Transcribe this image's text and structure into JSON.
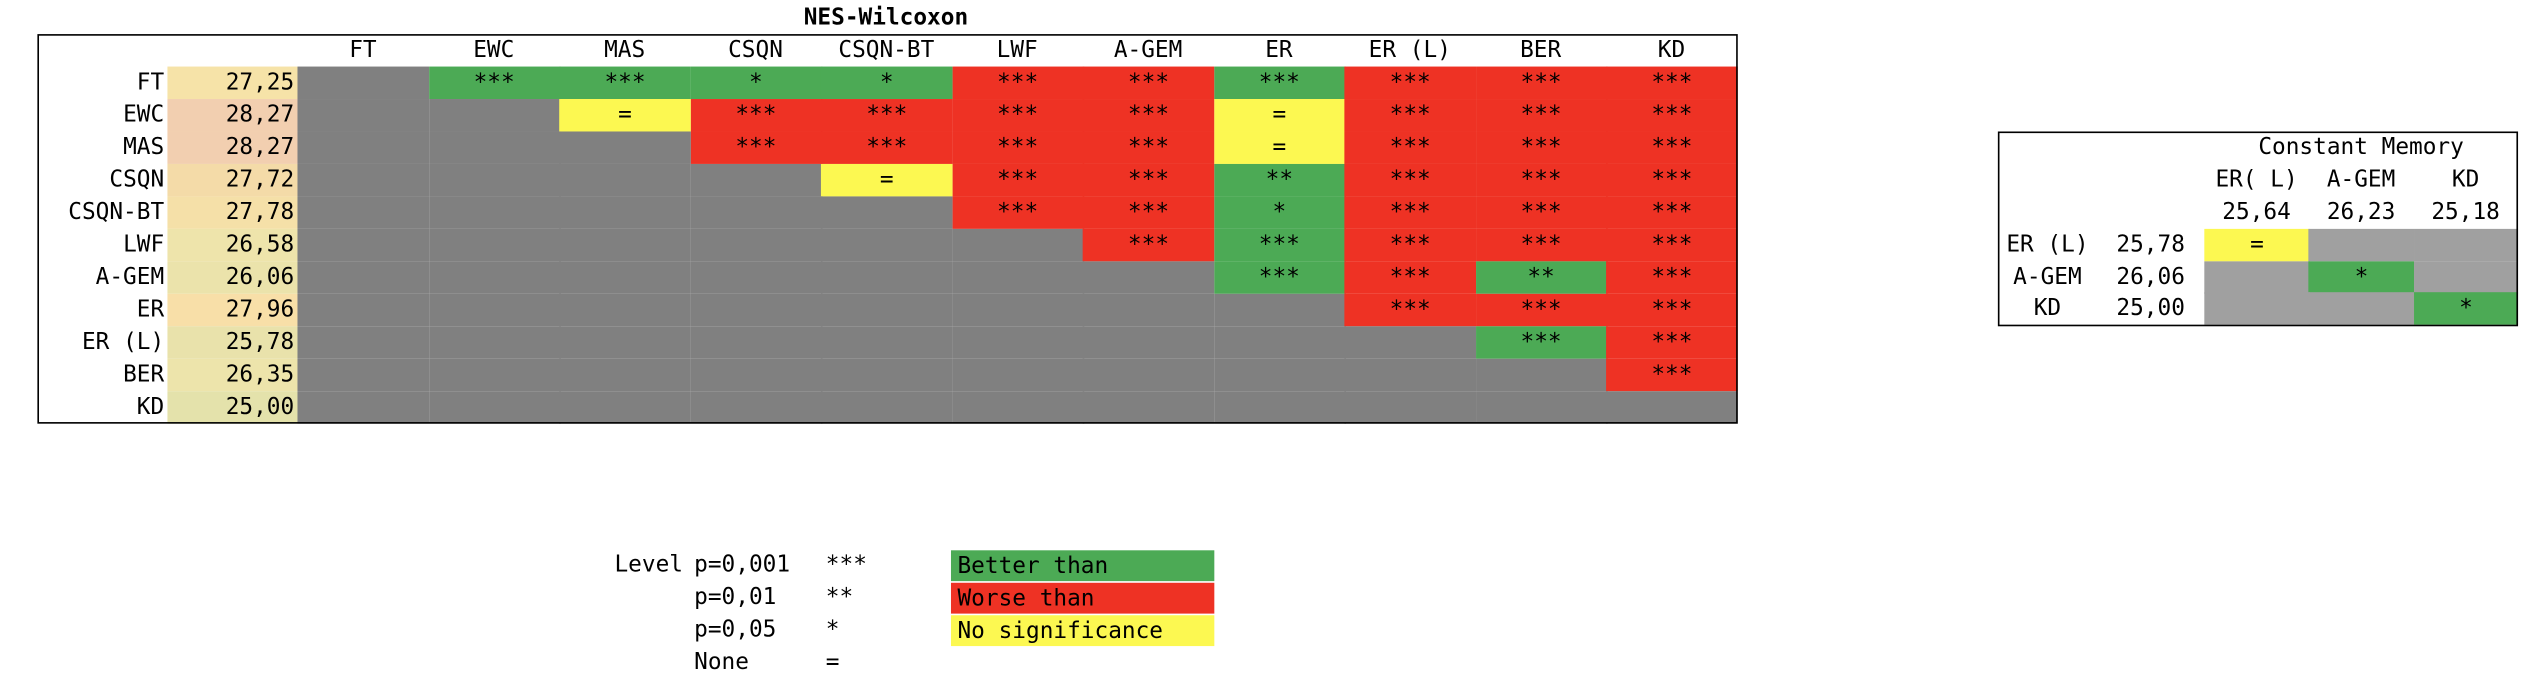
{
  "chart_data": [
    {
      "type": "table",
      "title": "NES-Wilcoxon",
      "columns": [
        "FT",
        "EWC",
        "MAS",
        "CSQN",
        "CSQN-BT",
        "LWF",
        "A-GEM",
        "ER",
        "ER (L)",
        "BER",
        "KD"
      ],
      "rows": [
        {
          "label": "FT",
          "value": "27,25",
          "value_color": "#f6e3a8",
          "cells": [
            "",
            "***",
            "***",
            "*",
            "*",
            "***",
            "***",
            "***",
            "***",
            "***",
            "***"
          ]
        },
        {
          "label": "EWC",
          "value": "28,27",
          "value_color": "#f2cfb0",
          "cells": [
            "",
            "",
            "=",
            "***",
            "***",
            "***",
            "***",
            "=",
            "***",
            "***",
            "***"
          ]
        },
        {
          "label": "MAS",
          "value": "28,27",
          "value_color": "#f2cfb0",
          "cells": [
            "",
            "",
            "",
            "***",
            "***",
            "***",
            "***",
            "=",
            "***",
            "***",
            "***"
          ]
        },
        {
          "label": "CSQN",
          "value": "27,72",
          "value_color": "#f4dba8",
          "cells": [
            "",
            "",
            "",
            "",
            "=",
            "***",
            "***",
            "**",
            "***",
            "***",
            "***"
          ]
        },
        {
          "label": "CSQN-BT",
          "value": "27,78",
          "value_color": "#f5e0a8",
          "cells": [
            "",
            "",
            "",
            "",
            "",
            "***",
            "***",
            "*",
            "***",
            "***",
            "***"
          ]
        },
        {
          "label": "LWF",
          "value": "26,58",
          "value_color": "#eee4ab",
          "cells": [
            "",
            "",
            "",
            "",
            "",
            "",
            "***",
            "***",
            "***",
            "***",
            "***"
          ]
        },
        {
          "label": "A-GEM",
          "value": "26,06",
          "value_color": "#ebe3ab",
          "cells": [
            "",
            "",
            "",
            "",
            "",
            "",
            "",
            "***",
            "***",
            "**",
            "***"
          ]
        },
        {
          "label": "ER",
          "value": "27,96",
          "value_color": "#f8dfa8",
          "cells": [
            "",
            "",
            "",
            "",
            "",
            "",
            "",
            "",
            "***",
            "***",
            "***"
          ]
        },
        {
          "label": "ER (L)",
          "value": "25,78",
          "value_color": "#e9e2ab",
          "cells": [
            "",
            "",
            "",
            "",
            "",
            "",
            "",
            "",
            "",
            "***",
            "***"
          ]
        },
        {
          "label": "BER",
          "value": "26,35",
          "value_color": "#ede4ab",
          "cells": [
            "",
            "",
            "",
            "",
            "",
            "",
            "",
            "",
            "",
            "",
            "***"
          ]
        },
        {
          "label": "KD",
          "value": "25,00",
          "value_color": "#e4e2ab",
          "cells": [
            "",
            "",
            "",
            "",
            "",
            "",
            "",
            "",
            "",
            "",
            ""
          ]
        }
      ],
      "cell_colors": [
        [
          "gray",
          "green",
          "green",
          "green",
          "green",
          "red",
          "red",
          "green",
          "red",
          "red",
          "red"
        ],
        [
          "gray",
          "gray",
          "yellow",
          "red",
          "red",
          "red",
          "red",
          "yellow",
          "red",
          "red",
          "red"
        ],
        [
          "gray",
          "gray",
          "gray",
          "red",
          "red",
          "red",
          "red",
          "yellow",
          "red",
          "red",
          "red"
        ],
        [
          "gray",
          "gray",
          "gray",
          "gray",
          "yellow",
          "red",
          "red",
          "green",
          "red",
          "red",
          "red"
        ],
        [
          "gray",
          "gray",
          "gray",
          "gray",
          "gray",
          "red",
          "red",
          "green",
          "red",
          "red",
          "red"
        ],
        [
          "gray",
          "gray",
          "gray",
          "gray",
          "gray",
          "gray",
          "red",
          "green",
          "red",
          "red",
          "red"
        ],
        [
          "gray",
          "gray",
          "gray",
          "gray",
          "gray",
          "gray",
          "gray",
          "green",
          "red",
          "green",
          "red"
        ],
        [
          "gray",
          "gray",
          "gray",
          "gray",
          "gray",
          "gray",
          "gray",
          "gray",
          "red",
          "red",
          "red"
        ],
        [
          "gray",
          "gray",
          "gray",
          "gray",
          "gray",
          "gray",
          "gray",
          "gray",
          "gray",
          "green",
          "red"
        ],
        [
          "gray",
          "gray",
          "gray",
          "gray",
          "gray",
          "gray",
          "gray",
          "gray",
          "gray",
          "gray",
          "red"
        ],
        [
          "gray",
          "gray",
          "gray",
          "gray",
          "gray",
          "gray",
          "gray",
          "gray",
          "gray",
          "gray",
          "gray"
        ]
      ]
    },
    {
      "type": "table",
      "title": "Constant Memory",
      "columns": [
        "ER( L)",
        "A-GEM",
        "KD"
      ],
      "column_values": [
        "25,64",
        "26,23",
        "25,18"
      ],
      "rows": [
        {
          "label": "ER (L)",
          "value": "25,78",
          "cells": [
            "=",
            "",
            ""
          ]
        },
        {
          "label": "A-GEM",
          "value": "26,06",
          "cells": [
            "",
            "*",
            ""
          ]
        },
        {
          "label": "KD",
          "value": "25,00",
          "cells": [
            "",
            "",
            "*"
          ]
        }
      ],
      "cell_colors": [
        [
          "yellow",
          "lightgray",
          "lightgray"
        ],
        [
          "lightgray",
          "green",
          "lightgray"
        ],
        [
          "lightgray",
          "lightgray",
          "green"
        ]
      ]
    }
  ],
  "legend": {
    "level_label": "Level",
    "levels": [
      {
        "p": "p=0,001",
        "symbol": "***"
      },
      {
        "p": "p=0,01",
        "symbol": "**"
      },
      {
        "p": "p=0,05",
        "symbol": "*"
      },
      {
        "p": "None",
        "symbol": "="
      }
    ],
    "colors": [
      {
        "label": "Better than",
        "color": "#4caa55"
      },
      {
        "label": "Worse than",
        "color": "#ee3224"
      },
      {
        "label": "No significance",
        "color": "#fcf851"
      }
    ]
  },
  "palette": {
    "green": "#4caa55",
    "red": "#ee3224",
    "yellow": "#fcf851",
    "gray": "#808080",
    "lightgray": "#a0a0a0"
  }
}
